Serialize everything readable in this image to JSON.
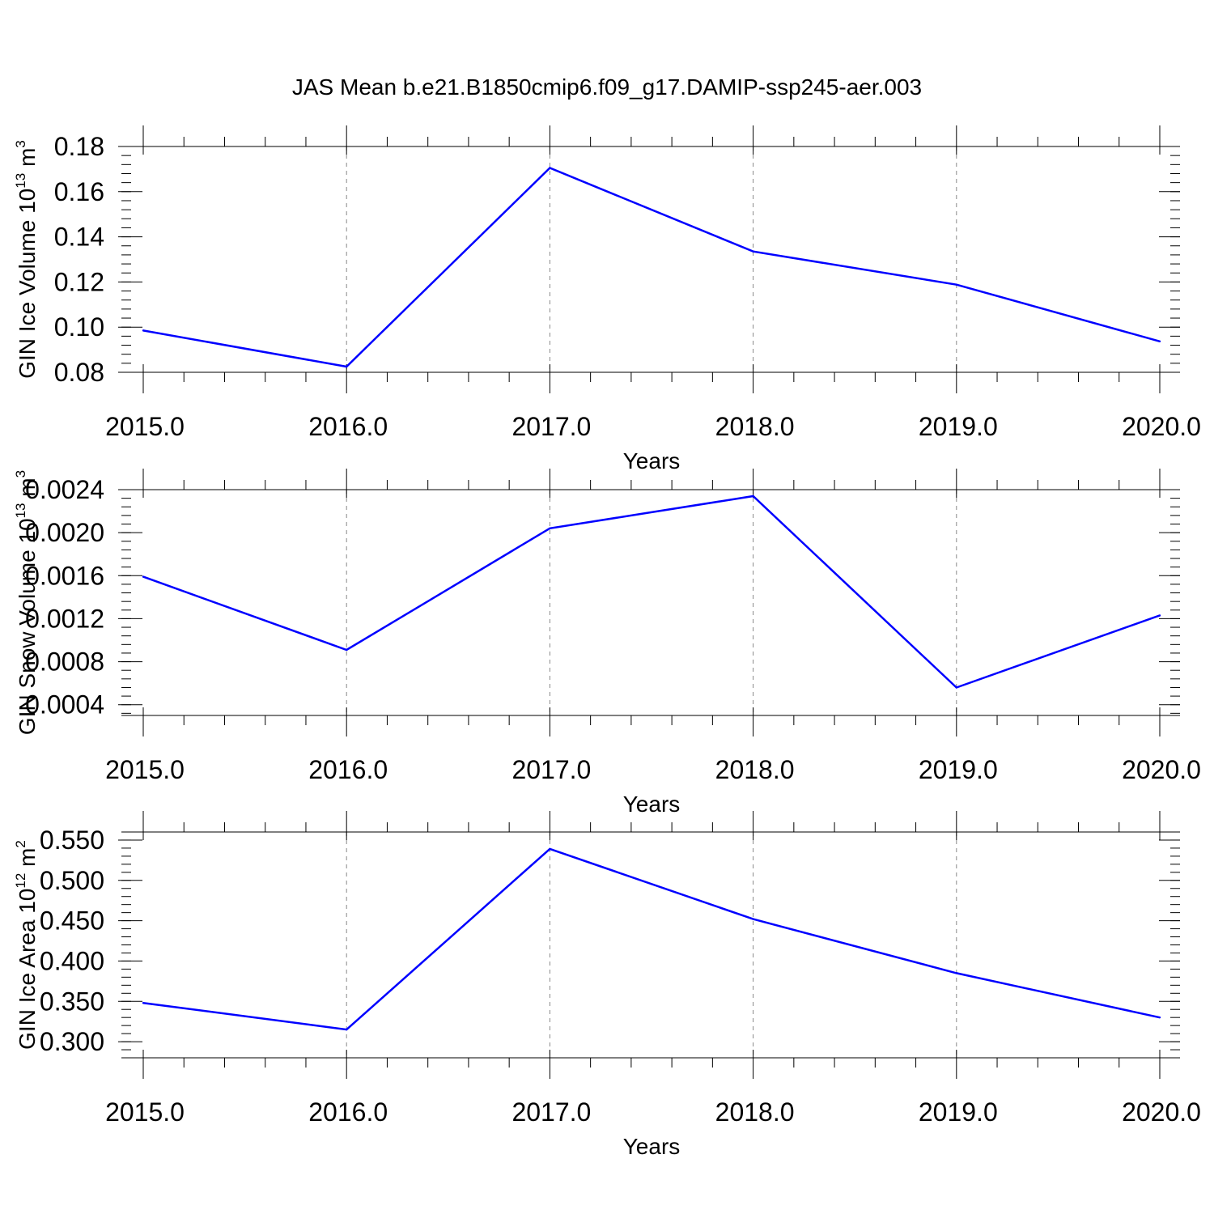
{
  "title": "JAS Mean b.e21.B1850cmip6.f09_g17.DAMIP-ssp245-aer.003",
  "colors": {
    "line": "#0000ff",
    "axis": "#000000",
    "grid": "#888888"
  },
  "chart_data": [
    {
      "type": "line",
      "ylabel_main": "GIN Ice Volume 10",
      "ylabel_exp": "13",
      "ylabel_unit": " m",
      "ylabel_unit_exp": "3",
      "xlabel": "Years",
      "x": [
        2015,
        2016,
        2017,
        2018,
        2019,
        2020
      ],
      "x_ticks": [
        "2015.0",
        "2016.0",
        "2017.0",
        "2018.0",
        "2019.0",
        "2020.0"
      ],
      "series": [
        {
          "values": [
            0.0985,
            0.0825,
            0.1705,
            0.1335,
            0.1188,
            0.0937
          ]
        }
      ],
      "ylim": [
        0.08,
        0.18
      ],
      "y_ticks": [
        "0.08",
        "0.10",
        "0.12",
        "0.14",
        "0.16",
        "0.18"
      ],
      "grid": "vertical dashed"
    },
    {
      "type": "line",
      "ylabel_main": "GIN Snow Volume 10",
      "ylabel_exp": "13",
      "ylabel_unit": " m",
      "ylabel_unit_exp": "3",
      "xlabel": "Years",
      "x": [
        2015,
        2016,
        2017,
        2018,
        2019,
        2020
      ],
      "x_ticks": [
        "2015.0",
        "2016.0",
        "2017.0",
        "2018.0",
        "2019.0",
        "2020.0"
      ],
      "series": [
        {
          "values": [
            0.00159,
            0.00091,
            0.00204,
            0.00234,
            0.00056,
            0.00123
          ]
        }
      ],
      "ylim": [
        0.0003,
        0.0024
      ],
      "y_ticks": [
        "0.0004",
        "0.0008",
        "0.0012",
        "0.0016",
        "0.0020",
        "0.0024"
      ],
      "grid": "vertical dashed"
    },
    {
      "type": "line",
      "ylabel_main": "GIN Ice Area 10",
      "ylabel_exp": "12",
      "ylabel_unit": " m",
      "ylabel_unit_exp": "2",
      "xlabel": "Years",
      "x": [
        2015,
        2016,
        2017,
        2018,
        2019,
        2020
      ],
      "x_ticks": [
        "2015.0",
        "2016.0",
        "2017.0",
        "2018.0",
        "2019.0",
        "2020.0"
      ],
      "series": [
        {
          "values": [
            0.348,
            0.315,
            0.539,
            0.452,
            0.385,
            0.33
          ]
        }
      ],
      "ylim": [
        0.28,
        0.56
      ],
      "y_ticks": [
        "0.300",
        "0.350",
        "0.400",
        "0.450",
        "0.500",
        "0.550"
      ],
      "grid": "vertical dashed"
    }
  ]
}
